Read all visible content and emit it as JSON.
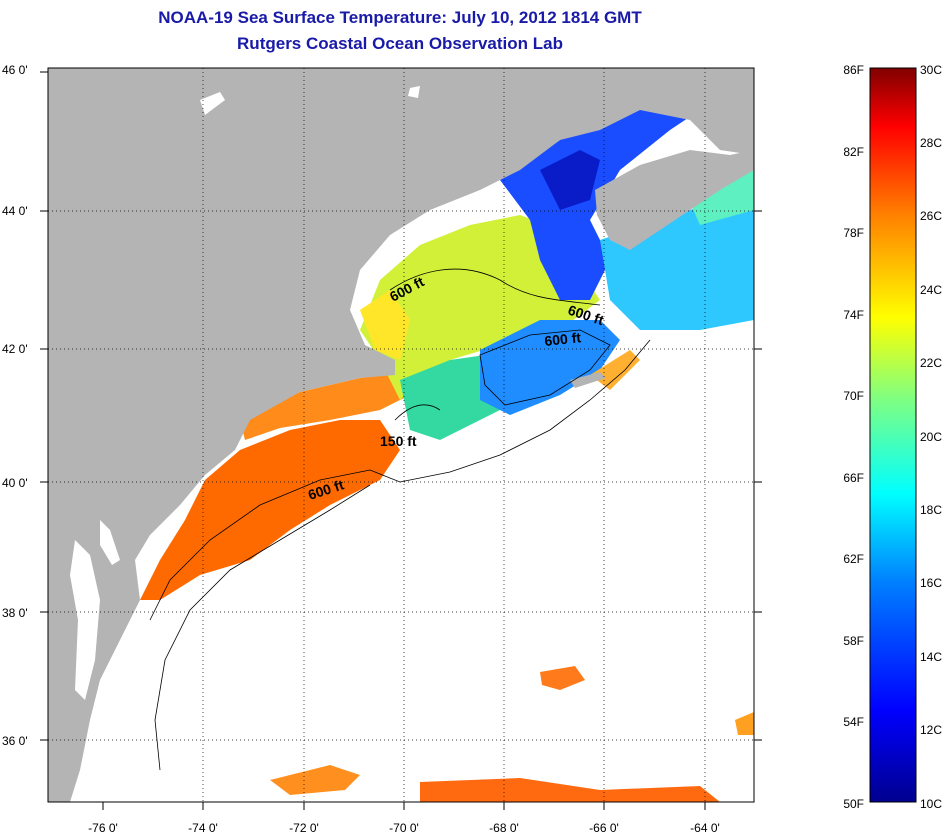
{
  "header": {
    "title": "NOAA-19 Sea Surface Temperature:  July 10, 2012 1814 GMT",
    "subtitle": "Rutgers Coastal Ocean Observation Lab"
  },
  "map": {
    "lat_labels": [
      "46 0'",
      "44 0'",
      "42 0'",
      "40 0'",
      "38 0'",
      "36 0'"
    ],
    "lon_labels": [
      "-76 0'",
      "-74 0'",
      "-72 0'",
      "-70 0'",
      "-68 0'",
      "-66 0'",
      "-64 0'"
    ],
    "contour_labels": [
      "600 ft",
      "600 ft",
      "600 ft",
      "150 ft",
      "600 ft"
    ],
    "colors": {
      "land": "#b4b4b4",
      "cloud_nodata": "#ffffff",
      "title": "#1a1aa8"
    }
  },
  "colorbar": {
    "f_labels": [
      "86F",
      "82F",
      "78F",
      "74F",
      "70F",
      "66F",
      "62F",
      "58F",
      "54F",
      "50F"
    ],
    "c_labels": [
      "30C",
      "28C",
      "26C",
      "24C",
      "22C",
      "20C",
      "18C",
      "16C",
      "14C",
      "12C",
      "10C"
    ],
    "range_c": [
      10,
      30
    ],
    "colors": [
      "#00008f",
      "#0000ff",
      "#0080ff",
      "#00ffff",
      "#80ff80",
      "#ffff00",
      "#ff8000",
      "#ff0000",
      "#800000"
    ]
  }
}
